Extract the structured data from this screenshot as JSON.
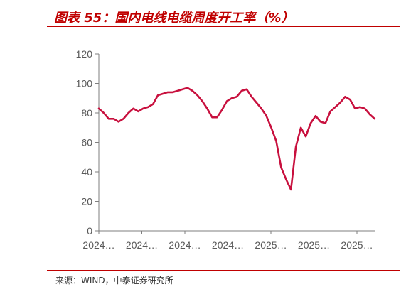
{
  "header": {
    "title": "图表 55：国内电线电缆周度开工率（%）"
  },
  "footer": {
    "source": "来源：WIND，中泰证券研究所"
  },
  "colors": {
    "accent": "#c00000",
    "line": "#c8103e",
    "axis": "#7f7f7f"
  },
  "chart_data": {
    "type": "line",
    "title": "",
    "xlabel": "",
    "ylabel": "",
    "ylim": [
      0,
      120
    ],
    "yticks": [
      0,
      20,
      40,
      60,
      80,
      100,
      120
    ],
    "xtick_labels": [
      "2024…",
      "2024…",
      "2024…",
      "2024…",
      "2025…",
      "2025…",
      "2025…"
    ],
    "grid": false,
    "legend": "none",
    "series": [
      {
        "values": [
          83,
          80,
          76,
          76,
          74,
          76,
          80,
          83,
          81,
          83,
          84,
          86,
          92,
          93,
          94,
          94,
          95,
          96,
          97,
          95,
          92,
          88,
          83,
          77,
          77,
          82,
          88,
          90,
          91,
          95,
          96,
          91,
          87,
          83,
          78,
          70,
          61,
          43,
          35,
          28,
          57,
          70,
          64,
          73,
          78,
          74,
          73,
          81,
          84,
          87,
          91,
          89,
          83,
          84,
          83,
          79,
          76
        ]
      }
    ]
  }
}
